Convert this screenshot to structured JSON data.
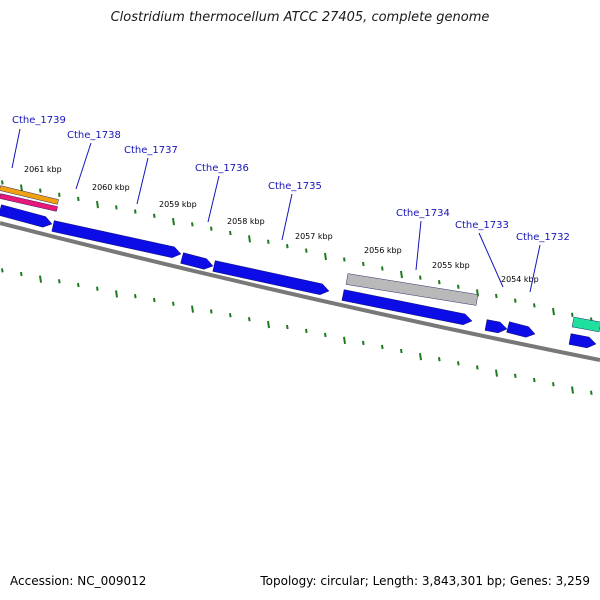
{
  "title": "Clostridium thermocellum ATCC 27405, complete genome",
  "footer": {
    "accession": "Accession: NC_009012",
    "topology": "Topology: circular; Length: 3,843,301 bp; Genes: 3,259"
  },
  "colors": {
    "cds": "#0c0ce6",
    "pseudo": "#b9b9b9",
    "backbone": "#787878",
    "tick": "#1e7a1e",
    "label": "#1515b8",
    "orange": "#f0a010",
    "pink": "#e8187a",
    "green": "#20e0a0"
  },
  "kbp_ticks": [
    "2061 kbp",
    "2060 kbp",
    "2059 kbp",
    "2058 kbp",
    "2057 kbp",
    "2056 kbp",
    "2055 kbp",
    "2054 kbp"
  ],
  "genes": [
    {
      "name": "Cthe_1739"
    },
    {
      "name": "Cthe_1738"
    },
    {
      "name": "Cthe_1737"
    },
    {
      "name": "Cthe_1736"
    },
    {
      "name": "Cthe_1735"
    },
    {
      "name": "Cthe_1734"
    },
    {
      "name": "Cthe_1733"
    },
    {
      "name": "Cthe_1732"
    }
  ]
}
